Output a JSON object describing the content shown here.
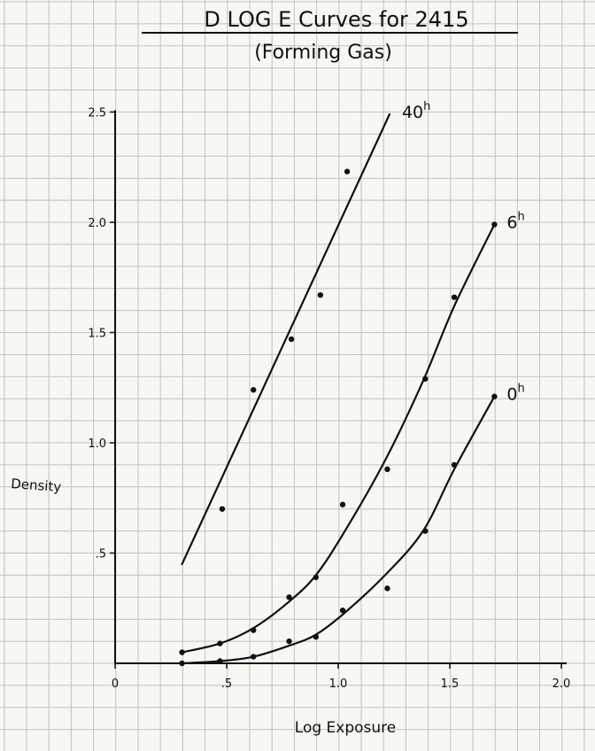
{
  "title": "D LOG E Curves for 2415",
  "subtitle": "(Forming Gas)",
  "chart_data": {
    "type": "line",
    "title": "D LOG E Curves for 2415",
    "subtitle": "(Forming Gas)",
    "xlabel": "Log Exposure",
    "ylabel": "Density",
    "xlim": [
      0,
      2.0
    ],
    "ylim": [
      0,
      2.5
    ],
    "x_ticks": [
      "0",
      ".5",
      "1.0",
      "1.5",
      "2.0"
    ],
    "y_ticks": [
      ".5",
      "1.0",
      "1.5",
      "2.0",
      "2.5"
    ],
    "grid": true,
    "series": [
      {
        "name": "40h",
        "label_main": "40",
        "label_sup": "h",
        "curve": [
          [
            0.3,
            0.45
          ],
          [
            1.23,
            2.49
          ]
        ],
        "points": [
          [
            0.48,
            0.7
          ],
          [
            0.62,
            1.24
          ],
          [
            0.79,
            1.47
          ],
          [
            0.92,
            1.67
          ],
          [
            1.04,
            2.23
          ]
        ]
      },
      {
        "name": "6h",
        "label_main": "6",
        "label_sup": "h",
        "curve": [
          [
            0.3,
            0.05
          ],
          [
            0.47,
            0.09
          ],
          [
            0.62,
            0.16
          ],
          [
            0.78,
            0.28
          ],
          [
            0.9,
            0.4
          ],
          [
            1.03,
            0.6
          ],
          [
            1.21,
            0.92
          ],
          [
            1.38,
            1.28
          ],
          [
            1.52,
            1.62
          ],
          [
            1.7,
            1.99
          ]
        ],
        "points": [
          [
            0.3,
            0.05
          ],
          [
            0.47,
            0.09
          ],
          [
            0.62,
            0.15
          ],
          [
            0.78,
            0.3
          ],
          [
            0.9,
            0.39
          ],
          [
            1.02,
            0.72
          ],
          [
            1.22,
            0.88
          ],
          [
            1.39,
            1.29
          ],
          [
            1.52,
            1.66
          ],
          [
            1.7,
            1.99
          ]
        ]
      },
      {
        "name": "0h",
        "label_main": "0",
        "label_sup": "h",
        "curve": [
          [
            0.3,
            0.0
          ],
          [
            0.47,
            0.01
          ],
          [
            0.62,
            0.03
          ],
          [
            0.78,
            0.08
          ],
          [
            0.9,
            0.13
          ],
          [
            1.03,
            0.23
          ],
          [
            1.21,
            0.4
          ],
          [
            1.38,
            0.6
          ],
          [
            1.52,
            0.88
          ],
          [
            1.7,
            1.21
          ]
        ],
        "points": [
          [
            0.3,
            0.0
          ],
          [
            0.47,
            0.01
          ],
          [
            0.62,
            0.03
          ],
          [
            0.78,
            0.1
          ],
          [
            0.9,
            0.12
          ],
          [
            1.02,
            0.24
          ],
          [
            1.22,
            0.34
          ],
          [
            1.39,
            0.6
          ],
          [
            1.52,
            0.9
          ],
          [
            1.7,
            1.21
          ]
        ]
      }
    ]
  }
}
